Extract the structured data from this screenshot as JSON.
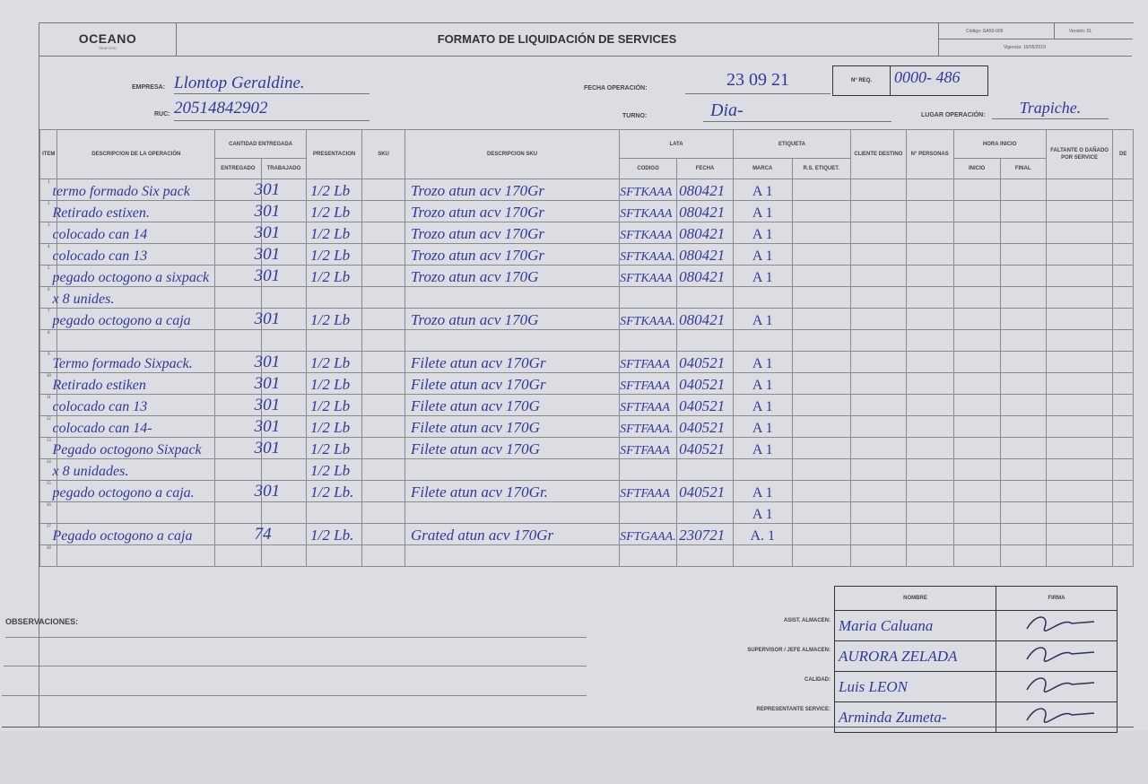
{
  "header": {
    "logo": "OCEANO",
    "logo_sub": "SEAFOOD",
    "title": "FORMATO DE LIQUIDACIÓN DE SERVICES",
    "codigo": "Código: GA50-005",
    "version": "Versión: 01",
    "vigencia": "Vigencia: 10/05/2019"
  },
  "fields": {
    "empresa_label": "EMPRESA:",
    "empresa": "Llontop Geraldine.",
    "ruc_label": "RUC:",
    "ruc": "20514842902",
    "fecha_label": "FECHA OPERACIÓN:",
    "fecha": "23 09 21",
    "nreq_label": "N° REQ.",
    "nreq": "0000- 486",
    "turno_label": "TURNO:",
    "turno": "Dia-",
    "lugar_label": "LUGAR OPERACIÓN:",
    "lugar": "Trapiche."
  },
  "columns": {
    "item": "ITEM",
    "descripcion": "DESCRIPCION DE LA OPERACIÓN",
    "cantidad": "CANTIDAD ENTREGADA",
    "entregado": "ENTREGADO",
    "trabajado": "TRABAJADO",
    "presentacion": "PRESENTACION",
    "sku": "SKU",
    "descripcion_sku": "DESCRIPCION SKU",
    "lata": "LATA",
    "codigo": "CODIGO",
    "fecha": "FECHA",
    "etiqueta": "ETIQUETA",
    "marca": "MARCA",
    "rs": "R.S. ETIQUET.",
    "cliente": "CLIENTE DESTINO",
    "personas": "N° PERSONAS",
    "hora": "HORA INICIO",
    "inicio": "INICIO",
    "final": "FINAL",
    "faltante": "FALTANTE O DAÑADO POR SERVICE",
    "de": "DE"
  },
  "rows": [
    {
      "n": "1",
      "op": "termo formado Six pack",
      "qty": "301",
      "pres": "1/2 Lb",
      "desc": "Trozo atun acv 170Gr",
      "cod": "SFTKAAA",
      "fecha": "080421",
      "marca": "A 1"
    },
    {
      "n": "2",
      "op": "Retirado estixen.",
      "qty": "301",
      "pres": "1/2 Lb",
      "desc": "Trozo atun acv 170Gr",
      "cod": "SFTKAAA",
      "fecha": "080421",
      "marca": "A 1"
    },
    {
      "n": "3",
      "op": "colocado can 14",
      "qty": "301",
      "pres": "1/2 Lb",
      "desc": "Trozo atun acv 170Gr",
      "cod": "SFTKAAA",
      "fecha": "080421",
      "marca": "A 1"
    },
    {
      "n": "4",
      "op": "colocado can 13",
      "qty": "301",
      "pres": "1/2 Lb",
      "desc": "Trozo atun acv 170Gr",
      "cod": "SFTKAAA.",
      "fecha": "080421",
      "marca": "A 1"
    },
    {
      "n": "5",
      "op": "pegado octogono a sixpack",
      "qty": "301",
      "pres": "1/2 Lb",
      "desc": "Trozo atun acv 170G",
      "cod": "SFTKAAA",
      "fecha": "080421",
      "marca": "A 1"
    },
    {
      "n": "6",
      "op": "x 8 unides.",
      "qty": "",
      "pres": "",
      "desc": "",
      "cod": "",
      "fecha": "",
      "marca": ""
    },
    {
      "n": "7",
      "op": "pegado octogono a caja",
      "qty": "301",
      "pres": "1/2 Lb",
      "desc": "Trozo atun acv 170G",
      "cod": "SFTKAAA.",
      "fecha": "080421",
      "marca": "A 1"
    },
    {
      "n": "8",
      "op": "",
      "qty": "",
      "pres": "",
      "desc": "",
      "cod": "",
      "fecha": "",
      "marca": ""
    },
    {
      "n": "9",
      "op": "Termo formado Sixpack.",
      "qty": "301",
      "pres": "1/2 Lb",
      "desc": "Filete atun acv 170Gr",
      "cod": "SFTFAAA",
      "fecha": "040521",
      "marca": "A 1"
    },
    {
      "n": "10",
      "op": "Retirado estiken",
      "qty": "301",
      "pres": "1/2 Lb",
      "desc": "Filete atun acv 170Gr",
      "cod": "SFTFAAA",
      "fecha": "040521",
      "marca": "A 1"
    },
    {
      "n": "11",
      "op": "colocado can 13",
      "qty": "301",
      "pres": "1/2 Lb",
      "desc": "Filete atun acv 170G",
      "cod": "SFTFAAA",
      "fecha": "040521",
      "marca": "A 1"
    },
    {
      "n": "12",
      "op": "colocado can 14-",
      "qty": "301",
      "pres": "1/2 Lb",
      "desc": "Filete atun acv 170G",
      "cod": "SFTFAAA.",
      "fecha": "040521",
      "marca": "A 1"
    },
    {
      "n": "13",
      "op": "Pegado octogono Sixpack",
      "qty": "301",
      "pres": "1/2 Lb",
      "desc": "Filete atun acv 170G",
      "cod": "SFTFAAA",
      "fecha": "040521",
      "marca": "A 1"
    },
    {
      "n": "14",
      "op": "x 8 unidades.",
      "qty": "",
      "pres": "1/2 Lb",
      "desc": "",
      "cod": "",
      "fecha": "",
      "marca": ""
    },
    {
      "n": "15",
      "op": "pegado octogono a caja.",
      "qty": "301",
      "pres": "1/2 Lb.",
      "desc": "Filete atun acv 170Gr.",
      "cod": "SFTFAAA",
      "fecha": "040521",
      "marca": "A 1"
    },
    {
      "n": "16",
      "op": "",
      "qty": "",
      "pres": "",
      "desc": "",
      "cod": "",
      "fecha": "",
      "marca": "A 1"
    },
    {
      "n": "17",
      "op": "Pegado octogono a caja",
      "qty": "74",
      "pres": "1/2 Lb.",
      "desc": "Grated atun acv 170Gr",
      "cod": "SFTGAAA.",
      "fecha": "230721",
      "marca": "A. 1"
    },
    {
      "n": "18",
      "op": "",
      "qty": "",
      "pres": "",
      "desc": "",
      "cod": "",
      "fecha": "",
      "marca": ""
    }
  ],
  "observaciones_label": "OBSERVACIONES:",
  "signatures": {
    "nombre": "NOMBRE",
    "firma": "FIRMA",
    "rows": [
      {
        "role": "ASIST. ALMACEN:",
        "name": "Maria Caluana"
      },
      {
        "role": "SUPERVISOR / JEFE ALMACEN:",
        "name": "AURORA ZELADA"
      },
      {
        "role": "CALIDAD:",
        "name": "Luis LEON"
      },
      {
        "role": "REPRESENTANTE SERVICE:",
        "name": "Arminda Zumeta-"
      }
    ]
  },
  "colors": {
    "ink": "#2e3a96",
    "paper": "#dcdde2",
    "lines": "#8a8b92"
  }
}
